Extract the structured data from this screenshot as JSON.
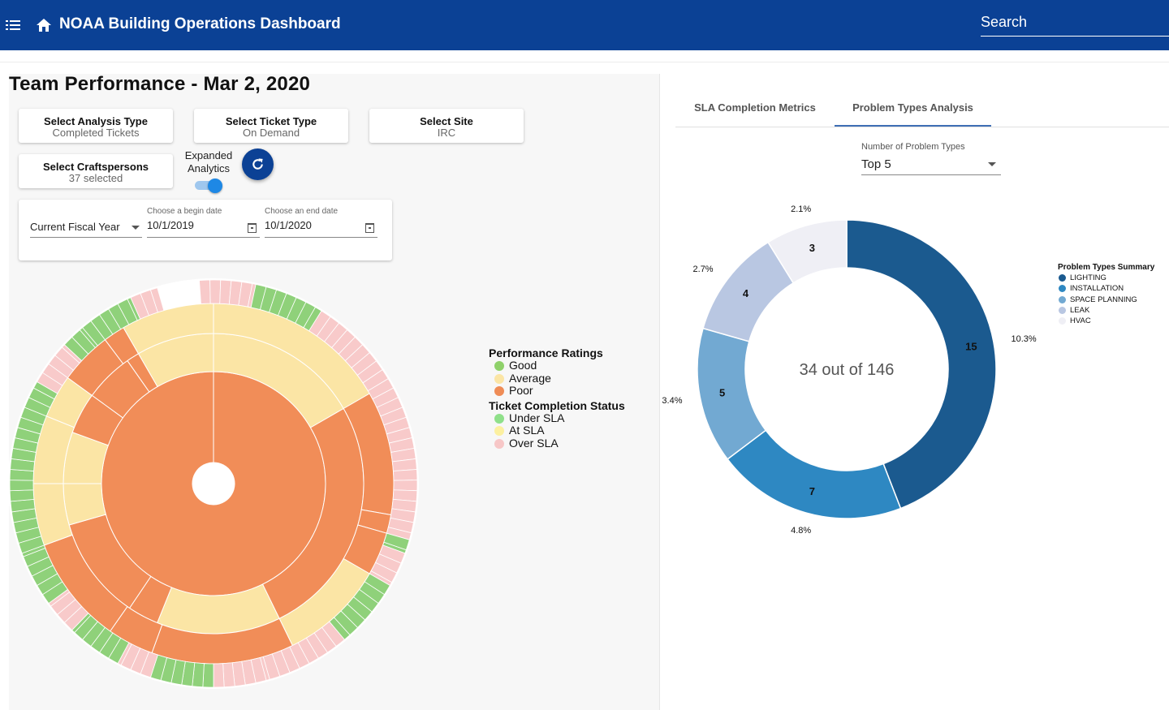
{
  "header": {
    "title": "NOAA Building Operations Dashboard",
    "search_placeholder": "Search"
  },
  "team": {
    "title": "Team Performance - Mar 2, 2020",
    "analysis": {
      "title": "Select Analysis Type",
      "value": "Completed Tickets"
    },
    "ticket": {
      "title": "Select Ticket Type",
      "value": "On Demand"
    },
    "site": {
      "title": "Select Site",
      "value": "IRC"
    },
    "crafts": {
      "title": "Select Craftspersons",
      "value": "37 selected"
    },
    "expanded_label": "Expanded Analytics",
    "expanded_on": true,
    "date_range": {
      "preset": "Current Fiscal Year",
      "begin_label": "Choose a begin date",
      "begin_value": "10/1/2019",
      "end_label": "Choose an end date",
      "end_value": "10/1/2020"
    }
  },
  "legend": {
    "ratings_title": "Performance Ratings",
    "ratings": [
      {
        "label": "Good",
        "color": "#8fd16a"
      },
      {
        "label": "Average",
        "color": "#fbe5a5"
      },
      {
        "label": "Poor",
        "color": "#ef8c56"
      }
    ],
    "status_title": "Ticket Completion Status",
    "statuses": [
      {
        "label": "Under SLA",
        "color": "#8fe08a"
      },
      {
        "label": "At SLA",
        "color": "#fcf0a0"
      },
      {
        "label": "Over SLA",
        "color": "#f7c7c7"
      }
    ]
  },
  "tabs": [
    {
      "label": "SLA Completion Metrics",
      "active": false
    },
    {
      "label": "Problem Types Analysis",
      "active": true
    }
  ],
  "problem_types": {
    "select_label": "Number of Problem Types",
    "select_value": "Top 5",
    "center_text": "34 out of 146",
    "legend_title": "Problem Types Summary"
  },
  "chart_data": {
    "type": "pie",
    "title": "",
    "legend_title": "Problem Types Summary",
    "legend_position": "right",
    "center_text": "34 out of 146",
    "categories": [
      "LIGHTING",
      "INSTALLATION",
      "SPACE PLANNING",
      "LEAK",
      "HVAC"
    ],
    "values": [
      15,
      7,
      5,
      4,
      3
    ],
    "percent_labels": [
      "10.3%",
      "4.8%",
      "3.4%",
      "2.7%",
      "2.1%"
    ],
    "colors": [
      "#1b5a8f",
      "#2e88c2",
      "#72a9d2",
      "#b9c7e2",
      "#efeff5"
    ]
  }
}
